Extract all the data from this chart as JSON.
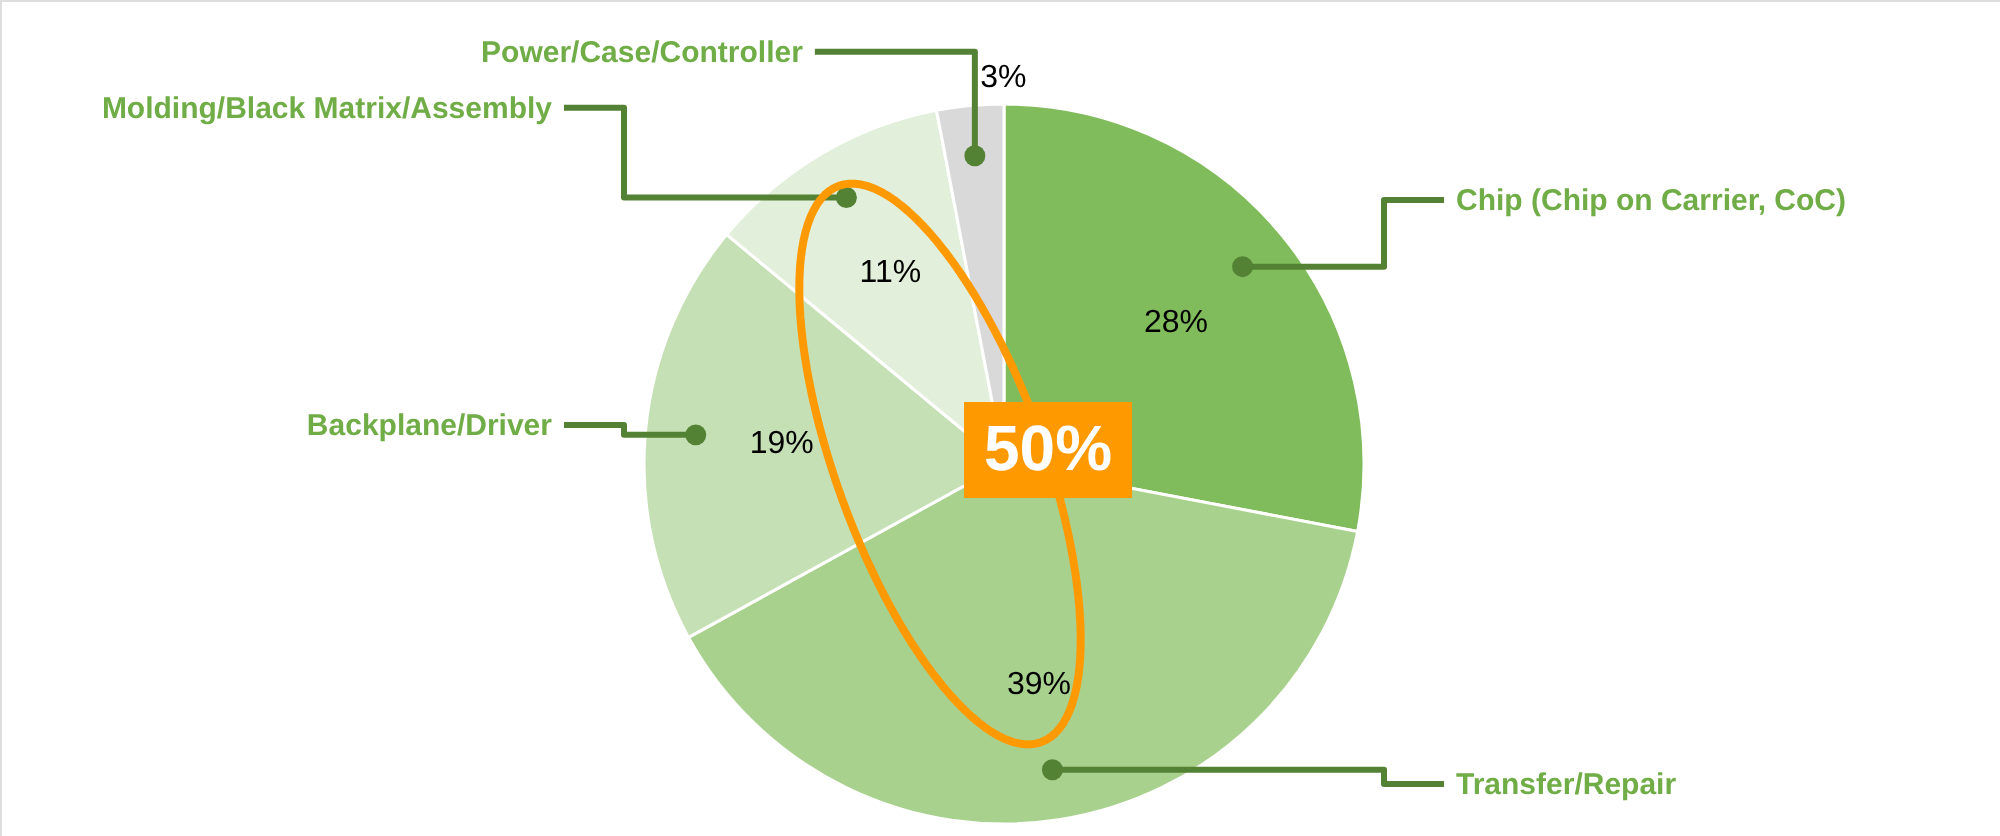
{
  "chart_data": {
    "type": "pie",
    "categories": [
      "Chip (Chip on Carrier, CoC)",
      "Transfer/Repair",
      "Backplane/Driver",
      "Molding/Black Matrix/Assembly",
      "Power/Case/Controller"
    ],
    "values": [
      28,
      39,
      19,
      11,
      3
    ],
    "value_labels": [
      "28%",
      "39%",
      "19%",
      "11%",
      "3%"
    ],
    "colors": [
      "#80bc5b",
      "#a9d18e",
      "#c5e0b4",
      "#e2efda",
      "#d9d9d9"
    ],
    "annotations": [
      "50%"
    ]
  }
}
